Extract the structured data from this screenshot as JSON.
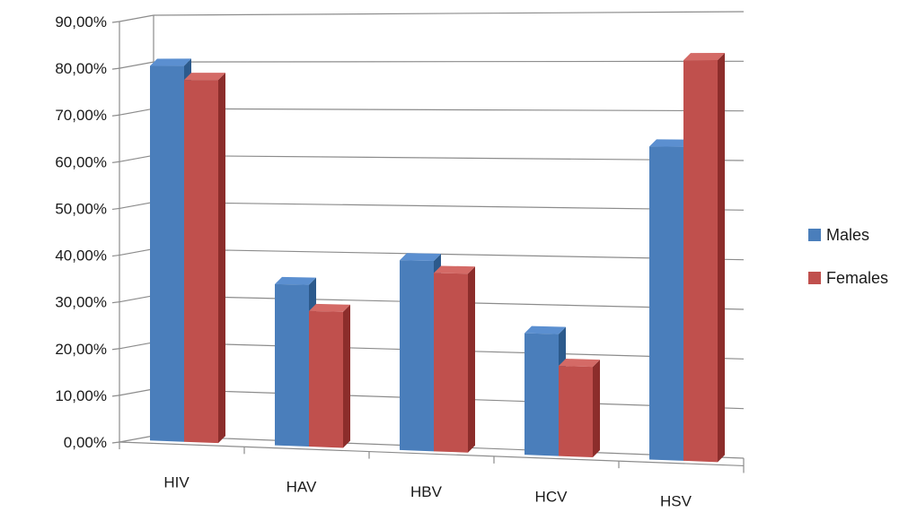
{
  "chart_data": {
    "type": "bar",
    "title": "",
    "xlabel": "",
    "ylabel": "",
    "categories": [
      "HIV",
      "HAV",
      "HBV",
      "HCV",
      "HSV"
    ],
    "series": [
      {
        "name": "Males",
        "values": [
          80.5,
          34.5,
          40.0,
          25.5,
          64.0
        ]
      },
      {
        "name": "Females",
        "values": [
          77.5,
          29.0,
          37.5,
          19.0,
          81.5
        ]
      }
    ],
    "ylim": [
      0,
      90
    ],
    "yticks": [
      "0,00%",
      "10,00%",
      "20,00%",
      "30,00%",
      "40,00%",
      "50,00%",
      "60,00%",
      "70,00%",
      "80,00%",
      "90,00%"
    ],
    "grid": true,
    "legend_position": "right",
    "projection": "3d-perspective",
    "colors": {
      "Males": {
        "front": "#4a7ebb",
        "side": "#2c5a8c",
        "top": "#5b8fd0"
      },
      "Females": {
        "front": "#c0504d",
        "side": "#8c2d2b",
        "top": "#d46a66"
      },
      "grid": "#8c8c8c",
      "axis": "#8c8c8c"
    }
  }
}
